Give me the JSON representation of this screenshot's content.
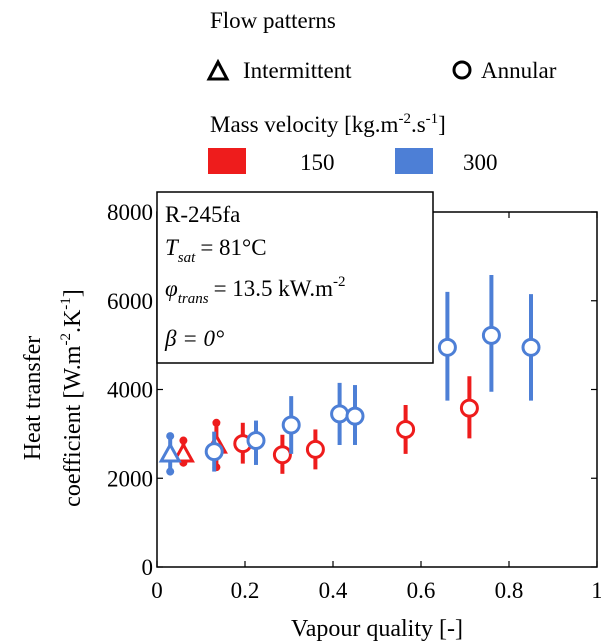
{
  "chart_data": {
    "type": "scatter",
    "xlabel": "Vapour quality [-]",
    "ylabel_line1": "Heat transfer",
    "ylabel_line2": "coefficient [W.m",
    "ylabel_sup1": "-2",
    "ylabel_mid": ".K",
    "ylabel_sup2": "-1",
    "ylabel_end": "]",
    "xlim": [
      0,
      1
    ],
    "ylim": [
      0,
      8000
    ],
    "x_ticks": [
      "0",
      "0.2",
      "0.4",
      "0.6",
      "0.8",
      "1"
    ],
    "x_tick_values": [
      0,
      0.2,
      0.4,
      0.6,
      0.8,
      1
    ],
    "y_ticks": [
      "0",
      "2000",
      "4000",
      "6000",
      "8000"
    ],
    "y_tick_values": [
      0,
      2000,
      4000,
      6000,
      8000
    ],
    "grid": false,
    "legend": {
      "flow_title": "Flow patterns",
      "flow_entries": [
        {
          "marker": "triangle",
          "label": "Intermittent"
        },
        {
          "marker": "circle",
          "label": "Annular"
        }
      ],
      "mass_title": "Mass velocity [kg.m",
      "mass_sup1": "-2",
      "mass_mid": ".s",
      "mass_sup2": "-1",
      "mass_end": "]",
      "mass_entries": [
        {
          "label": "150",
          "color": "#ee1c1c"
        },
        {
          "label": "300",
          "color": "#4d7fd6"
        }
      ]
    },
    "annotation": {
      "fluid": "R-245fa",
      "tsat_var": "T",
      "tsat_sub": "sat",
      "tsat_val": "= 81°C",
      "phi_var": "φ",
      "phi_sub": "trans",
      "phi_val": "= 13.5 kW.m",
      "phi_sup": "-2",
      "beta": "β = 0°"
    },
    "series": [
      {
        "name": "150",
        "color": "#ee1c1c",
        "points": [
          {
            "x": 0.06,
            "y": 2550,
            "lo": 2350,
            "hi": 2850,
            "marker": "triangle"
          },
          {
            "x": 0.135,
            "y": 2750,
            "lo": 2250,
            "hi": 3250,
            "marker": "triangle"
          },
          {
            "x": 0.195,
            "y": 2780,
            "lo": 2330,
            "hi": 3250,
            "marker": "circle"
          },
          {
            "x": 0.285,
            "y": 2530,
            "lo": 2100,
            "hi": 2980,
            "marker": "circle"
          },
          {
            "x": 0.36,
            "y": 2650,
            "lo": 2200,
            "hi": 3100,
            "marker": "circle"
          },
          {
            "x": 0.565,
            "y": 3100,
            "lo": 2550,
            "hi": 3650,
            "marker": "circle"
          },
          {
            "x": 0.71,
            "y": 3580,
            "lo": 2900,
            "hi": 4300,
            "marker": "circle"
          }
        ]
      },
      {
        "name": "300",
        "color": "#4d7fd6",
        "points": [
          {
            "x": 0.03,
            "y": 2550,
            "lo": 2150,
            "hi": 2950,
            "marker": "triangle"
          },
          {
            "x": 0.13,
            "y": 2600,
            "lo": 2150,
            "hi": 3050,
            "marker": "circle"
          },
          {
            "x": 0.225,
            "y": 2850,
            "lo": 2300,
            "hi": 3300,
            "marker": "circle"
          },
          {
            "x": 0.305,
            "y": 3200,
            "lo": 2550,
            "hi": 3850,
            "marker": "circle"
          },
          {
            "x": 0.415,
            "y": 3450,
            "lo": 2750,
            "hi": 4150,
            "marker": "circle"
          },
          {
            "x": 0.45,
            "y": 3400,
            "lo": 2750,
            "hi": 4100,
            "marker": "circle"
          },
          {
            "x": 0.66,
            "y": 4950,
            "lo": 3750,
            "hi": 6200,
            "marker": "circle"
          },
          {
            "x": 0.76,
            "y": 5220,
            "lo": 3950,
            "hi": 6580,
            "marker": "circle"
          },
          {
            "x": 0.85,
            "y": 4950,
            "lo": 3750,
            "hi": 6150,
            "marker": "circle"
          }
        ]
      }
    ]
  }
}
